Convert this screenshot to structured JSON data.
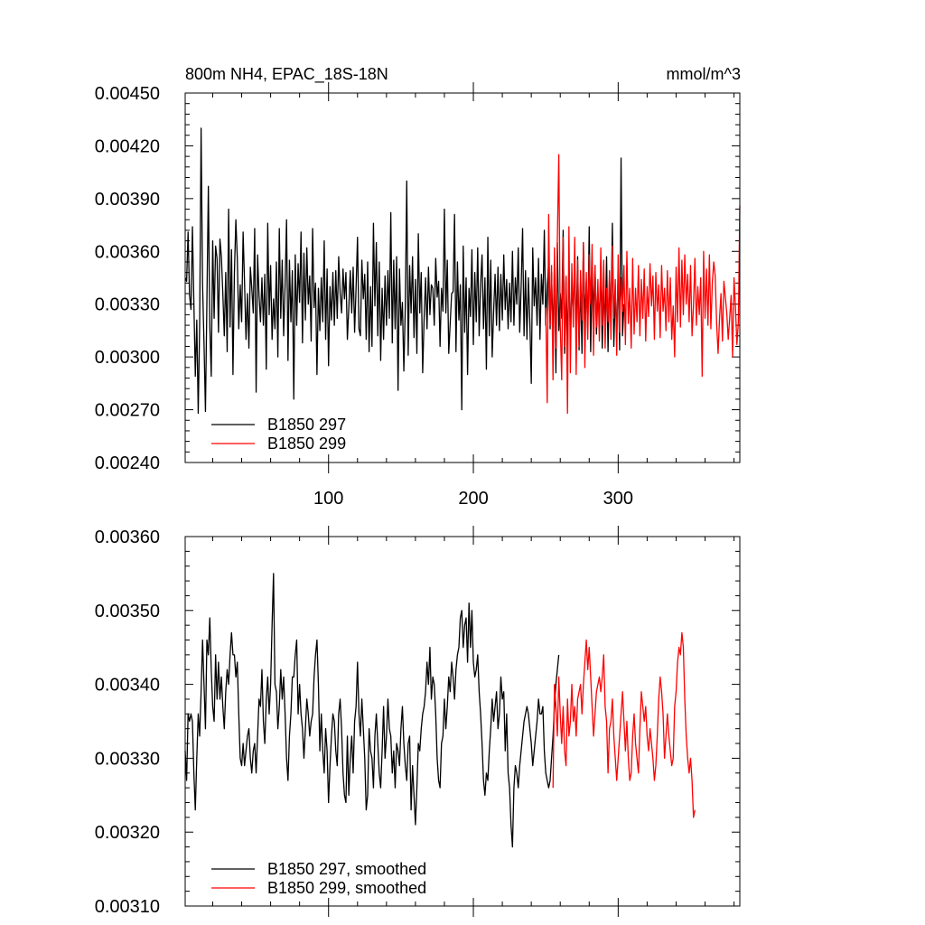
{
  "colors": {
    "run_a": "#000000",
    "run_b": "#ff0000",
    "axis": "#000000",
    "background": "#ffffff"
  },
  "chart_data": [
    {
      "type": "line",
      "panel": "top",
      "title": "800m NH4, EPAC_18S-18N",
      "units": "mmol/m^3",
      "xlabel": "",
      "ylabel": "",
      "xlim": [
        1,
        384
      ],
      "ylim": [
        0.0024,
        0.0045
      ],
      "x_tick_labels": [
        "100",
        "200",
        "300"
      ],
      "y_tick_labels": [
        "0.00240",
        "0.00270",
        "0.00300",
        "0.00330",
        "0.00360",
        "0.00390",
        "0.00420",
        "0.00450"
      ],
      "legend_position": "bottom-left",
      "series": [
        {
          "name": "B1850 297",
          "color": "#000000",
          "x_start": 1,
          "values": [
            0.00345,
            0.00343,
            0.00371,
            0.00335,
            0.00327,
            0.00374,
            0.00331,
            0.00289,
            0.00321,
            0.00268,
            0.00318,
            0.0043,
            0.00341,
            0.00308,
            0.00269,
            0.00332,
            0.00397,
            0.00318,
            0.00289,
            0.00366,
            0.00322,
            0.00363,
            0.00356,
            0.00314,
            0.00367,
            0.00357,
            0.00336,
            0.00312,
            0.00348,
            0.00303,
            0.00384,
            0.00317,
            0.00361,
            0.0029,
            0.00348,
            0.00378,
            0.00356,
            0.00316,
            0.00341,
            0.0032,
            0.00371,
            0.00342,
            0.0031,
            0.00336,
            0.00305,
            0.00351,
            0.00339,
            0.00325,
            0.00373,
            0.0028,
            0.00358,
            0.00335,
            0.0032,
            0.00345,
            0.00318,
            0.00347,
            0.00293,
            0.00376,
            0.00324,
            0.00352,
            0.0031,
            0.00333,
            0.00316,
            0.00354,
            0.003,
            0.00373,
            0.00322,
            0.00355,
            0.00312,
            0.00341,
            0.00378,
            0.00298,
            0.00355,
            0.0032,
            0.00349,
            0.00276,
            0.00358,
            0.00318,
            0.00353,
            0.00331,
            0.00371,
            0.00308,
            0.00359,
            0.00321,
            0.00362,
            0.0033,
            0.00346,
            0.00309,
            0.00373,
            0.00328,
            0.00342,
            0.0029,
            0.00339,
            0.00315,
            0.00345,
            0.0032,
            0.00366,
            0.0031,
            0.0035,
            0.00295,
            0.0034,
            0.00321,
            0.00348,
            0.00318,
            0.00349,
            0.00322,
            0.00357,
            0.00336,
            0.00325,
            0.0035,
            0.00333,
            0.00348,
            0.0031,
            0.00328,
            0.00349,
            0.00325,
            0.00351,
            0.00314,
            0.00339,
            0.00368,
            0.00316,
            0.00312,
            0.00355,
            0.00333,
            0.00347,
            0.0031,
            0.00354,
            0.00303,
            0.0034,
            0.00306,
            0.00376,
            0.00329,
            0.00365,
            0.00312,
            0.00354,
            0.00298,
            0.00339,
            0.0031,
            0.00346,
            0.00318,
            0.00349,
            0.00322,
            0.00382,
            0.00308,
            0.00355,
            0.00316,
            0.00357,
            0.00281,
            0.0035,
            0.00318,
            0.00331,
            0.00292,
            0.00329,
            0.004,
            0.00301,
            0.00352,
            0.00325,
            0.00357,
            0.00311,
            0.00344,
            0.00302,
            0.0037,
            0.00325,
            0.00348,
            0.00291,
            0.00322,
            0.00345,
            0.00316,
            0.00351,
            0.00324,
            0.00341,
            0.00339,
            0.00318,
            0.00356,
            0.00334,
            0.00343,
            0.00306,
            0.00339,
            0.00326,
            0.00384,
            0.00325,
            0.00355,
            0.00302,
            0.00319,
            0.00336,
            0.00337,
            0.00381,
            0.00303,
            0.00354,
            0.00321,
            0.00341,
            0.0027,
            0.00363,
            0.00314,
            0.00345,
            0.0029,
            0.00339,
            0.00323,
            0.00361,
            0.00307,
            0.00348,
            0.0032,
            0.00362,
            0.00312,
            0.00341,
            0.00358,
            0.00316,
            0.00345,
            0.00293,
            0.00368,
            0.00312,
            0.00355,
            0.003,
            0.00326,
            0.00347,
            0.00318,
            0.00351,
            0.00315,
            0.00347,
            0.00321,
            0.00358,
            0.00327,
            0.00344,
            0.00316,
            0.00342,
            0.0032,
            0.0036,
            0.00318,
            0.00345,
            0.0033,
            0.00362,
            0.00314,
            0.0034,
            0.00373,
            0.00312,
            0.00349,
            0.0031,
            0.00345,
            0.0032,
            0.00285,
            0.00362,
            0.00329,
            0.00345,
            0.00318,
            0.00356,
            0.0031,
            0.00347,
            0.0033,
            0.00372,
            0.00318,
            0.00341,
            0.00353,
            0.00316,
            0.00348,
            0.00312,
            0.00353,
            0.00291,
            0.00365,
            0.00315,
            0.00336,
            0.00322,
            0.00372,
            0.00302,
            0.00345,
            0.00307,
            0.00352,
            0.0031,
            0.0034,
            0.00325,
            0.00354,
            0.00314,
            0.00357,
            0.00304,
            0.00343,
            0.00302,
            0.00365,
            0.0032,
            0.00343,
            0.00315,
            0.00374,
            0.00303,
            0.00345,
            0.00326,
            0.00352,
            0.00313,
            0.00336,
            0.00322,
            0.00351,
            0.00305,
            0.0034,
            0.00316,
            0.00357,
            0.00303,
            0.00346,
            0.0032,
            0.00376,
            0.00306,
            0.00337,
            0.00312,
            0.00349,
            0.00304,
            0.00413,
            0.00312,
            0.0033
          ]
        },
        {
          "name": "B1850 299",
          "color": "#ff0000",
          "x_start": 250,
          "values": [
            0.00328,
            0.00274,
            0.00381,
            0.00318,
            0.00352,
            0.00287,
            0.00362,
            0.00305,
            0.00367,
            0.00415,
            0.00318,
            0.00287,
            0.00368,
            0.00306,
            0.00346,
            0.00268,
            0.00374,
            0.00291,
            0.00353,
            0.00317,
            0.00368,
            0.0029,
            0.00355,
            0.00306,
            0.00349,
            0.00321,
            0.00365,
            0.00294,
            0.00348,
            0.0031,
            0.00358,
            0.0033,
            0.00364,
            0.00301,
            0.00352,
            0.00317,
            0.00344,
            0.00309,
            0.00362,
            0.00318,
            0.00355,
            0.00305,
            0.00339,
            0.0032,
            0.00349,
            0.0031,
            0.00363,
            0.00322,
            0.00344,
            0.00301,
            0.00358,
            0.00314,
            0.00345,
            0.00326,
            0.00352,
            0.00307,
            0.0036,
            0.00319,
            0.00339,
            0.00305,
            0.00356,
            0.00313,
            0.00339,
            0.0032,
            0.00352,
            0.00312,
            0.00344,
            0.00322,
            0.0035,
            0.00309,
            0.0034,
            0.00323,
            0.00353,
            0.00329,
            0.00346,
            0.0031,
            0.00348,
            0.00326,
            0.00341,
            0.00311,
            0.00352,
            0.00326,
            0.00339,
            0.00315,
            0.00349,
            0.0032,
            0.00345,
            0.0031,
            0.00329,
            0.003,
            0.00351,
            0.0032,
            0.00362,
            0.00317,
            0.00355,
            0.00324,
            0.00358,
            0.0033,
            0.00347,
            0.0032,
            0.00352,
            0.00312,
            0.00329,
            0.00356,
            0.00318,
            0.0034,
            0.00324,
            0.00345,
            0.00289,
            0.0036,
            0.00322,
            0.0035,
            0.00318,
            0.00358,
            0.00316,
            0.00342,
            0.00354,
            0.00346,
            0.00319,
            0.00302,
            0.00322,
            0.00336,
            0.00309,
            0.00343,
            0.00334,
            0.00325,
            0.0031,
            0.00322,
            0.00335,
            0.003,
            0.00345,
            0.00328,
            0.00307,
            0.0032,
            0.00386
          ]
        }
      ]
    },
    {
      "type": "line",
      "panel": "bottom",
      "title": "",
      "xlabel": "",
      "ylabel": "",
      "xlim": [
        1,
        384
      ],
      "ylim": [
        0.0031,
        0.0036
      ],
      "y_tick_labels": [
        "0.00310",
        "0.00320",
        "0.00330",
        "0.00340",
        "0.00350",
        "0.00360"
      ],
      "legend_position": "bottom-left",
      "series": [
        {
          "name": "B1850 297, smoothed",
          "color": "#000000",
          "x_start": 1,
          "values": [
            0.00331,
            0.00327,
            0.00336,
            0.00335,
            0.00336,
            0.00335,
            0.00328,
            0.00323,
            0.0033,
            0.00336,
            0.00333,
            0.00339,
            0.00346,
            0.0034,
            0.00334,
            0.00346,
            0.00344,
            0.00349,
            0.00342,
            0.00337,
            0.00335,
            0.00344,
            0.00338,
            0.00343,
            0.00338,
            0.00341,
            0.00337,
            0.00334,
            0.00339,
            0.00342,
            0.0034,
            0.00344,
            0.00347,
            0.00344,
            0.00344,
            0.00341,
            0.00343,
            0.00336,
            0.0033,
            0.00329,
            0.00332,
            0.00329,
            0.00331,
            0.00333,
            0.00334,
            0.0033,
            0.00328,
            0.00331,
            0.00332,
            0.00328,
            0.00333,
            0.00338,
            0.00337,
            0.00342,
            0.00335,
            0.00332,
            0.00338,
            0.00341,
            0.00336,
            0.0034,
            0.00348,
            0.00355,
            0.0034,
            0.00339,
            0.00334,
            0.00337,
            0.00342,
            0.00338,
            0.00341,
            0.00336,
            0.0033,
            0.00327,
            0.00333,
            0.00336,
            0.00341,
            0.00341,
            0.00344,
            0.00346,
            0.00336,
            0.0034,
            0.00336,
            0.00334,
            0.0033,
            0.00334,
            0.00338,
            0.00336,
            0.00333,
            0.00335,
            0.00336,
            0.00341,
            0.00344,
            0.00346,
            0.0034,
            0.00331,
            0.00336,
            0.00331,
            0.00328,
            0.00334,
            0.00331,
            0.00324,
            0.00329,
            0.00333,
            0.00336,
            0.00335,
            0.00331,
            0.00329,
            0.00336,
            0.00338,
            0.00334,
            0.00328,
            0.00325,
            0.00324,
            0.00333,
            0.00325,
            0.0033,
            0.00333,
            0.00328,
            0.00335,
            0.00337,
            0.00343,
            0.00336,
            0.00333,
            0.00338,
            0.00334,
            0.0033,
            0.00323,
            0.00325,
            0.00334,
            0.00331,
            0.0033,
            0.00326,
            0.00333,
            0.00336,
            0.00332,
            0.00328,
            0.00326,
            0.00331,
            0.00337,
            0.0033,
            0.00333,
            0.00338,
            0.00334,
            0.00333,
            0.00328,
            0.00331,
            0.00326,
            0.00332,
            0.00331,
            0.00329,
            0.00334,
            0.00337,
            0.00332,
            0.00329,
            0.00327,
            0.00332,
            0.00333,
            0.00323,
            0.00329,
            0.00325,
            0.00321,
            0.00326,
            0.00332,
            0.00331,
            0.00334,
            0.00336,
            0.00337,
            0.00339,
            0.00343,
            0.0034,
            0.00345,
            0.00338,
            0.00341,
            0.0034,
            0.00336,
            0.0033,
            0.00327,
            0.00326,
            0.00332,
            0.00333,
            0.00338,
            0.00334,
            0.00337,
            0.00341,
            0.00339,
            0.00343,
            0.00341,
            0.00338,
            0.00342,
            0.00344,
            0.00345,
            0.00349,
            0.0035,
            0.00345,
            0.00348,
            0.00349,
            0.00343,
            0.00351,
            0.00345,
            0.0035,
            0.00343,
            0.00341,
            0.00342,
            0.00344,
            0.00339,
            0.00336,
            0.00332,
            0.00327,
            0.00325,
            0.00328,
            0.00327,
            0.00331,
            0.00334,
            0.00338,
            0.00335,
            0.00337,
            0.00339,
            0.00334,
            0.00336,
            0.00341,
            0.00338,
            0.00339,
            0.00331,
            0.00336,
            0.00328,
            0.00326,
            0.00321,
            0.00318,
            0.00326,
            0.00329,
            0.00328,
            0.00326,
            0.00329,
            0.00331,
            0.00333,
            0.00335,
            0.00336,
            0.00337,
            0.00336,
            0.00334,
            0.00332,
            0.00329,
            0.00331,
            0.00333,
            0.00335,
            0.00338,
            0.00336,
            0.00336,
            0.00337,
            0.00331,
            0.00328,
            0.00327,
            0.00326,
            0.00327,
            0.0033,
            0.00333,
            0.00337,
            0.0034,
            0.00342,
            0.00344
          ]
        },
        {
          "name": "B1850 299, smoothed",
          "color": "#ff0000",
          "x_start": 255,
          "values": [
            0.00326,
            0.0034,
            0.00337,
            0.00333,
            0.00341,
            0.00336,
            0.00332,
            0.00337,
            0.00331,
            0.00329,
            0.00338,
            0.00333,
            0.00335,
            0.0034,
            0.00335,
            0.00337,
            0.00333,
            0.00338,
            0.00339,
            0.0034,
            0.00336,
            0.0034,
            0.00343,
            0.00346,
            0.00342,
            0.00345,
            0.00341,
            0.00337,
            0.00333,
            0.00336,
            0.00339,
            0.0034,
            0.00341,
            0.00339,
            0.00341,
            0.00344,
            0.00337,
            0.00335,
            0.00328,
            0.00334,
            0.00335,
            0.00338,
            0.00333,
            0.0033,
            0.00327,
            0.0033,
            0.00333,
            0.00336,
            0.00339,
            0.00335,
            0.00331,
            0.00335,
            0.0033,
            0.00327,
            0.00328,
            0.00333,
            0.00336,
            0.00332,
            0.0033,
            0.00328,
            0.00334,
            0.00339,
            0.00337,
            0.00335,
            0.00337,
            0.00333,
            0.00331,
            0.00334,
            0.00332,
            0.0033,
            0.00327,
            0.00329,
            0.00333,
            0.00338,
            0.00341,
            0.00339,
            0.00336,
            0.0033,
            0.00333,
            0.00336,
            0.00333,
            0.00331,
            0.00329,
            0.0033,
            0.00337,
            0.00339,
            0.00343,
            0.00345,
            0.00344,
            0.00347,
            0.00345,
            0.00338,
            0.00333,
            0.0033,
            0.00328,
            0.0033,
            0.00327,
            0.00322,
            0.00323
          ]
        }
      ]
    }
  ]
}
